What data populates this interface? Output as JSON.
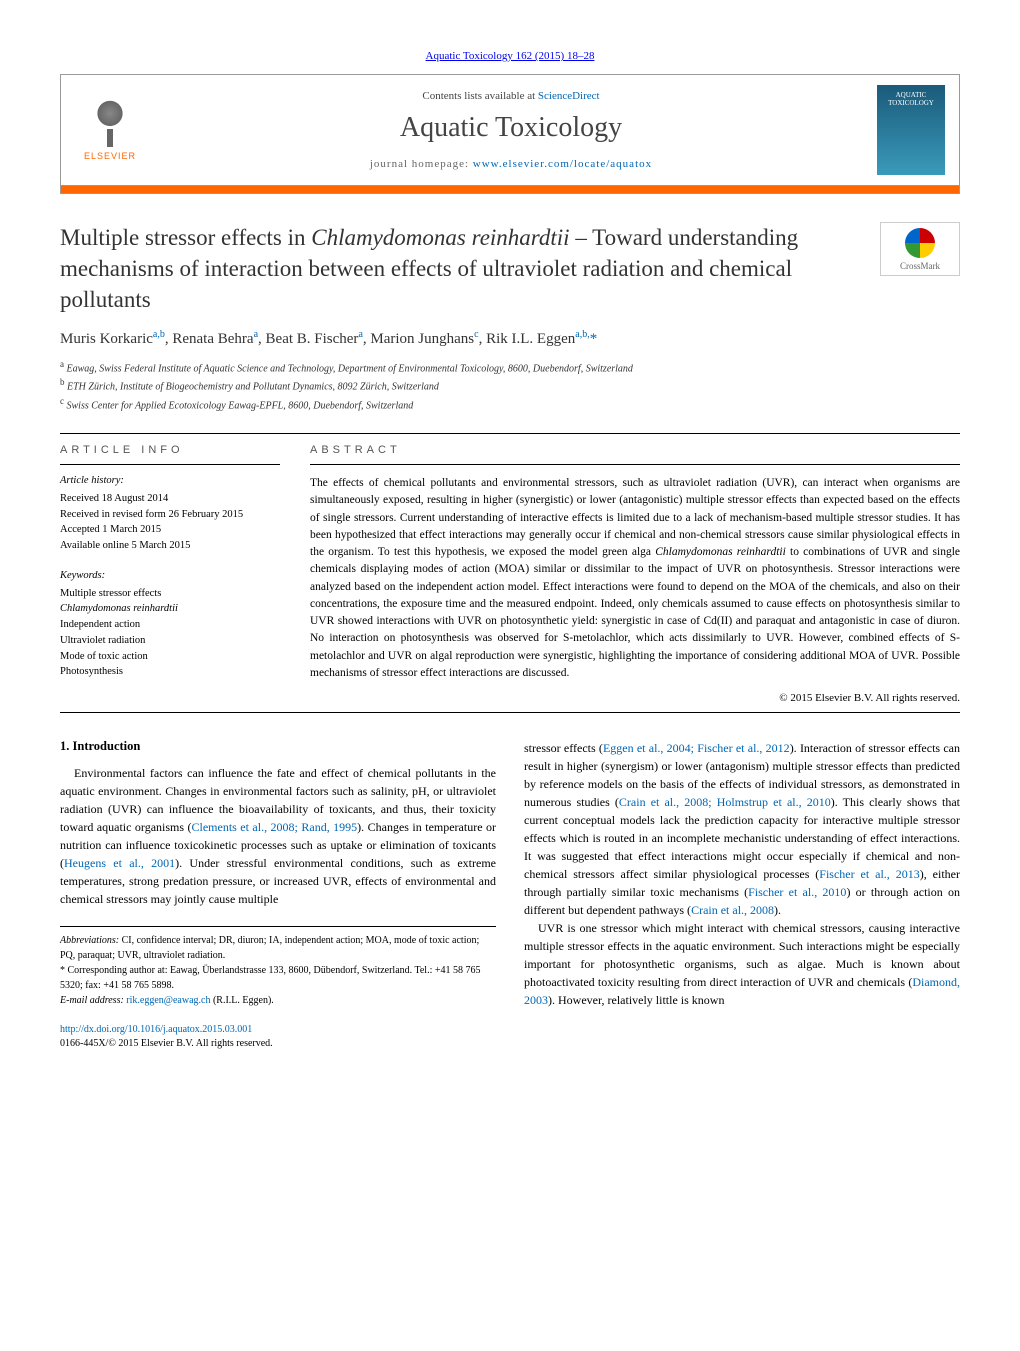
{
  "colors": {
    "link": "#0066b3",
    "accent": "#ff6600",
    "text": "#000000",
    "muted": "#555555",
    "border": "#000000",
    "cover_gradient": [
      "#1a5a7a",
      "#2a7a9a",
      "#3a9aba"
    ]
  },
  "typography": {
    "body_font": "Georgia, Times New Roman, serif",
    "title_fontsize_pt": 17,
    "journal_name_fontsize_pt": 21,
    "body_fontsize_pt": 9,
    "abstract_fontsize_pt": 8.5
  },
  "journal_ref": "Aquatic Toxicology 162 (2015) 18–28",
  "header": {
    "contents_prefix": "Contents lists available at ",
    "contents_link": "ScienceDirect",
    "journal_name": "Aquatic Toxicology",
    "homepage_prefix": "journal homepage: ",
    "homepage_url": "www.elsevier.com/locate/aquatox",
    "elsevier_label": "ELSEVIER",
    "cover_label_1": "AQUATIC",
    "cover_label_2": "TOXICOLOGY"
  },
  "crossmark_label": "CrossMark",
  "title_html": "Multiple stressor effects in <em>Chlamydomonas reinhardtii</em> – Toward understanding mechanisms of interaction between effects of ultraviolet radiation and chemical pollutants",
  "authors_html": "Muris Korkaric<sup>a,b</sup>, Renata Behra<sup>a</sup>, Beat B. Fischer<sup>a</sup>, Marion Junghans<sup>c</sup>, Rik I.L. Eggen<sup>a,b,</sup><span class='star'>*</span>",
  "affiliations": [
    {
      "sup": "a",
      "text": "Eawag, Swiss Federal Institute of Aquatic Science and Technology, Department of Environmental Toxicology, 8600, Duebendorf, Switzerland"
    },
    {
      "sup": "b",
      "text": "ETH Zürich, Institute of Biogeochemistry and Pollutant Dynamics, 8092 Zürich, Switzerland"
    },
    {
      "sup": "c",
      "text": "Swiss Center for Applied Ecotoxicology Eawag-EPFL, 8600, Duebendorf, Switzerland"
    }
  ],
  "article_info_label": "article info",
  "abstract_label": "abstract",
  "history": {
    "title": "Article history:",
    "received": "Received 18 August 2014",
    "revised": "Received in revised form 26 February 2015",
    "accepted": "Accepted 1 March 2015",
    "online": "Available online 5 March 2015"
  },
  "keywords": {
    "title": "Keywords:",
    "items": [
      "Multiple stressor effects",
      "Chlamydomonas reinhardtii",
      "Independent action",
      "Ultraviolet radiation",
      "Mode of toxic action",
      "Photosynthesis"
    ]
  },
  "abstract_html": "The effects of chemical pollutants and environmental stressors, such as ultraviolet radiation (UVR), can interact when organisms are simultaneously exposed, resulting in higher (synergistic) or lower (antagonistic) multiple stressor effects than expected based on the effects of single stressors. Current understanding of interactive effects is limited due to a lack of mechanism-based multiple stressor studies. It has been hypothesized that effect interactions may generally occur if chemical and non-chemical stressors cause similar physiological effects in the organism. To test this hypothesis, we exposed the model green alga <em>Chlamydomonas reinhardtii</em> to combinations of UVR and single chemicals displaying modes of action (MOA) similar or dissimilar to the impact of UVR on photosynthesis. Stressor interactions were analyzed based on the independent action model. Effect interactions were found to depend on the MOA of the chemicals, and also on their concentrations, the exposure time and the measured endpoint. Indeed, only chemicals assumed to cause effects on photosynthesis similar to UVR showed interactions with UVR on photosynthetic yield: synergistic in case of Cd(II) and paraquat and antagonistic in case of diuron. No interaction on photosynthesis was observed for S-metolachlor, which acts dissimilarly to UVR. However, combined effects of S-metolachlor and UVR on algal reproduction were synergistic, highlighting the importance of considering additional MOA of UVR. Possible mechanisms of stressor effect interactions are discussed.",
  "copyright": "© 2015 Elsevier B.V. All rights reserved.",
  "intro_heading": "1.  Introduction",
  "intro_col1_html": "Environmental factors can influence the fate and effect of chemical pollutants in the aquatic environment. Changes in environmental factors such as salinity, pH, or ultraviolet radiation (UVR) can influence the bioavailability of toxicants, and thus, their toxicity toward aquatic organisms (<a href='#'>Clements et&nbsp;al., 2008; Rand, 1995</a>). Changes in temperature or nutrition can influence toxicokinetic processes such as uptake or elimination of toxicants (<a href='#'>Heugens et&nbsp;al., 2001</a>). Under stressful environmental conditions, such as extreme temperatures, strong predation pressure, or increased UVR, effects of environmental and chemical stressors may jointly cause multiple",
  "intro_col2_p1_html": "stressor effects (<a href='#'>Eggen et&nbsp;al., 2004; Fischer et&nbsp;al., 2012</a>). Interaction of stressor effects can result in higher (synergism) or lower (antagonism) multiple stressor effects than predicted by reference models on the basis of the effects of individual stressors, as demonstrated in numerous studies (<a href='#'>Crain et&nbsp;al., 2008; Holmstrup et&nbsp;al., 2010</a>). This clearly shows that current conceptual models lack the prediction capacity for interactive multiple stressor effects which is routed in an incomplete mechanistic understanding of effect interactions. It was suggested that effect interactions might occur especially if chemical and non-chemical stressors affect similar physiological processes (<a href='#'>Fischer et&nbsp;al., 2013</a>), either through partially similar toxic mechanisms (<a href='#'>Fischer et&nbsp;al., 2010</a>) or through action on different but dependent pathways (<a href='#'>Crain et&nbsp;al., 2008</a>).",
  "intro_col2_p2_html": "UVR is one stressor which might interact with chemical stressors, causing interactive multiple stressor effects in the aquatic environment. Such interactions might be especially important for photosynthetic organisms, such as algae. Much is known about photoactivated toxicity resulting from direct interaction of UVR and chemicals (<a href='#'>Diamond, 2003</a>). However, relatively little is known",
  "footnotes": {
    "abbrev_label": "Abbreviations:",
    "abbrev_text": " CI, confidence interval; DR, diuron; IA, independent action; MOA, mode of toxic action; PQ, paraquat; UVR, ultraviolet radiation.",
    "corr_label": "* Corresponding author at:",
    "corr_text": " Eawag, Überlandstrasse 133, 8600, Dübendorf, Switzerland. Tel.: +41 58 765 5320; fax: +41 58 765 5898.",
    "email_label": "E-mail address:",
    "email": "rik.eggen@eawag.ch",
    "email_who": " (R.I.L. Eggen)."
  },
  "doi": {
    "url": "http://dx.doi.org/10.1016/j.aquatox.2015.03.001",
    "issn_line": "0166-445X/© 2015 Elsevier B.V. All rights reserved."
  }
}
